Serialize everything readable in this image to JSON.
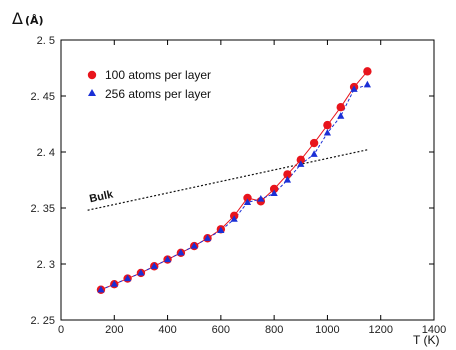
{
  "chart_data": {
    "type": "line",
    "xlabel": "T (K)",
    "ylabel": "Δ(Å)",
    "ylabel_symbol": "Δ",
    "ylabel_unit": "(Å)",
    "xlim": [
      0,
      1400
    ],
    "ylim": [
      2.25,
      2.5
    ],
    "x_ticks": [
      0,
      200,
      400,
      600,
      800,
      1000,
      1200,
      1400
    ],
    "y_ticks": [
      2.25,
      2.3,
      2.35,
      2.4,
      2.45,
      2.5
    ],
    "x_tick_labels": [
      "0",
      "200",
      "400",
      "600",
      "800",
      "1000",
      "1200",
      "1400"
    ],
    "y_tick_labels": [
      "2. 25",
      "2. 3",
      "2. 35",
      "2. 4",
      "2. 45",
      "2. 5"
    ],
    "grid": false,
    "legend_position": "top-left",
    "series": [
      {
        "name": "100 atoms per layer",
        "color": "#e8141c",
        "marker": "circle",
        "line_style": "solid",
        "x": [
          150,
          200,
          250,
          300,
          350,
          400,
          450,
          500,
          550,
          600,
          650,
          700,
          750,
          800,
          850,
          900,
          950,
          1000,
          1050,
          1100,
          1150
        ],
        "y": [
          2.277,
          2.282,
          2.287,
          2.292,
          2.298,
          2.304,
          2.31,
          2.316,
          2.323,
          2.331,
          2.343,
          2.359,
          2.356,
          2.367,
          2.38,
          2.393,
          2.408,
          2.424,
          2.44,
          2.458,
          2.472
        ]
      },
      {
        "name": "256 atoms per layer",
        "color": "#1a2fd6",
        "marker": "triangle",
        "line_style": "dashed",
        "x": [
          150,
          200,
          250,
          300,
          350,
          400,
          450,
          500,
          550,
          600,
          650,
          700,
          750,
          800,
          850,
          900,
          950,
          1000,
          1050,
          1100,
          1150
        ],
        "y": [
          2.277,
          2.282,
          2.287,
          2.292,
          2.298,
          2.304,
          2.31,
          2.316,
          2.323,
          2.33,
          2.34,
          2.355,
          2.358,
          2.363,
          2.375,
          2.389,
          2.398,
          2.417,
          2.432,
          2.456,
          2.46
        ]
      }
    ],
    "reference_line": {
      "label": "Bulk",
      "color": "#111111",
      "line_style": "dotted",
      "x": [
        100,
        1150
      ],
      "y": [
        2.348,
        2.402
      ]
    }
  }
}
